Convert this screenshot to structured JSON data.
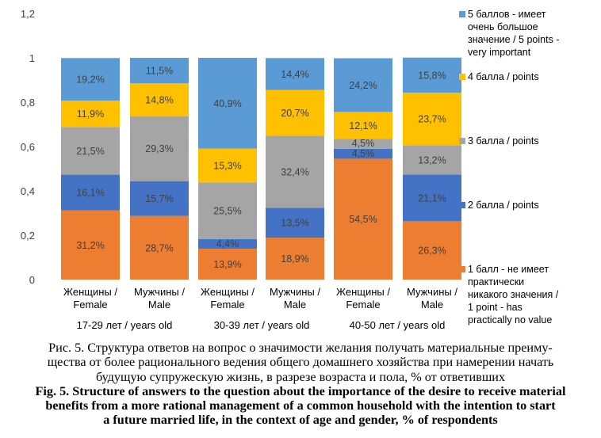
{
  "chart_data": {
    "type": "bar",
    "stacked": true,
    "ylim": [
      0,
      1.2
    ],
    "yticks": [
      "0",
      "0,2",
      "0,4",
      "0,6",
      "0,8",
      "1",
      "1,2"
    ],
    "categories": [
      [
        "Женщины /",
        "Female"
      ],
      [
        "Мужчины /",
        "Male"
      ],
      [
        "Женщины /",
        "Female"
      ],
      [
        "Мужчины /",
        "Male"
      ],
      [
        "Женщины /",
        "Female"
      ],
      [
        "Мужчины /",
        "Male"
      ]
    ],
    "groups": [
      "17-29 лет / years old",
      "30-39 лет / years old",
      "40-50 лет / years old"
    ],
    "series": [
      {
        "name": [
          "1 балл - не имеет",
          "практически",
          "никакого значения /",
          "1 point - has",
          "practically no value"
        ],
        "color": "#ED7D31",
        "values": [
          0.312,
          0.287,
          0.139,
          0.189,
          0.545,
          0.263
        ],
        "labels": [
          "31,2%",
          "28,7%",
          "13,9%",
          "18,9%",
          "54,5%",
          "26,3%"
        ]
      },
      {
        "name": [
          "2 балла / points"
        ],
        "color": "#4472C4",
        "values": [
          0.161,
          0.157,
          0.044,
          0.135,
          0.045,
          0.211
        ],
        "labels": [
          "16,1%",
          "15,7%",
          "4,4%",
          "13,5%",
          "4,5%",
          "21,1%"
        ]
      },
      {
        "name": [
          "3 балла / points"
        ],
        "color": "#A5A5A5",
        "values": [
          0.215,
          0.293,
          0.255,
          0.324,
          0.045,
          0.132
        ],
        "labels": [
          "21,5%",
          "29,3%",
          "25,5%",
          "32,4%",
          "4,5%",
          "13,2%"
        ]
      },
      {
        "name": [
          "4 балла / points"
        ],
        "color": "#FFC000",
        "values": [
          0.119,
          0.148,
          0.153,
          0.207,
          0.121,
          0.237
        ],
        "labels": [
          "11,9%",
          "14,8%",
          "15,3%",
          "20,7%",
          "12,1%",
          "23,7%"
        ]
      },
      {
        "name": [
          "5 баллов - имеет",
          "очень большое",
          "значение / 5 points -",
          "very important"
        ],
        "color": "#5B9BD5",
        "values": [
          0.192,
          0.115,
          0.409,
          0.144,
          0.242,
          0.158
        ],
        "labels": [
          "19,2%",
          "11,5%",
          "40,9%",
          "14,4%",
          "24,2%",
          "15,8%"
        ]
      }
    ],
    "legend_position": "right"
  },
  "caption": {
    "ru_lines": [
      "Рис. 5. Структура ответов на вопрос о значимости желания получать материальные преиму-",
      "щества от более рационального ведения общего домашнего хозяйства при намерении начать",
      "будущую супружескую жизнь, в разрезе возраста и пола, % от ответивших"
    ],
    "en_lines": [
      "Fig. 5. Structure of answers to the question about the importance of the desire to receive material",
      "benefits from a more rational management of a common household with the intention to start",
      "a future married life, in the context of age and gender, % of respondents"
    ]
  }
}
